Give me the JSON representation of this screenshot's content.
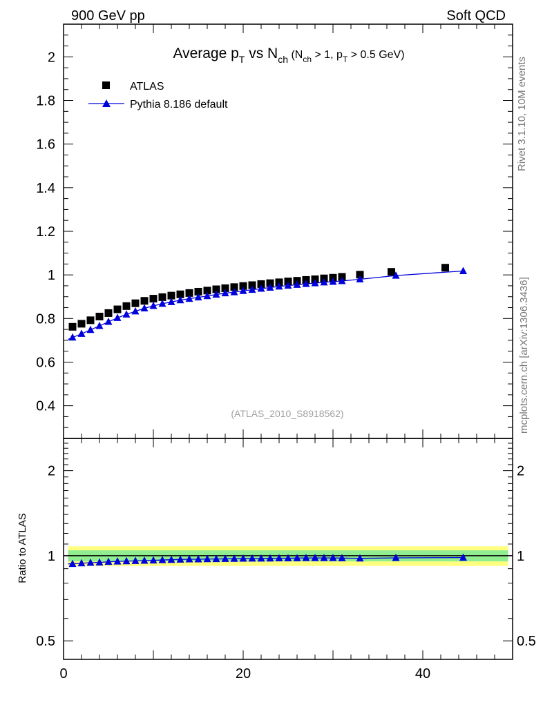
{
  "header": {
    "left": "900 GeV pp",
    "right": "Soft QCD"
  },
  "side": {
    "rivet": "Rivet 3.1.10,  10M events",
    "mcplots": "mcplots.cern.ch [arXiv:1306.3436]"
  },
  "watermark": "(ATLAS_2010_S8918562)",
  "title": {
    "main": "Average p",
    "main_sub": "T",
    "vs": " vs N",
    "vs_sub": "ch",
    "cut1": " (N",
    "cut1_sub": "ch",
    "cut2": " > 1, p",
    "cut2_sub": "T",
    "cut3": " > 0.5 GeV)"
  },
  "legend": {
    "data_label": "ATLAS",
    "mc_label": "Pythia 8.186 default"
  },
  "colors": {
    "data": "#000000",
    "mc": "#0000dd",
    "band_outer": "#ffff80",
    "band_inner": "#90ee90"
  },
  "chart_data": [
    {
      "type": "scatter",
      "panel": "main",
      "xlim": [
        0,
        50
      ],
      "ylim": [
        0.25,
        2.15
      ],
      "yticks": [
        0.4,
        0.6,
        0.8,
        1,
        1.2,
        1.4,
        1.6,
        1.8,
        2
      ],
      "ytick_labels": [
        "0.4",
        "0.6",
        "0.8",
        "1",
        "1.2",
        "1.4",
        "1.6",
        "1.8",
        "2"
      ],
      "series": [
        {
          "name": "ATLAS",
          "marker": "square",
          "x": [
            1,
            2,
            3,
            4,
            5,
            6,
            7,
            8,
            9,
            10,
            11,
            12,
            13,
            14,
            15,
            16,
            17,
            18,
            19,
            20,
            21,
            22,
            23,
            24,
            25,
            26,
            27,
            28,
            29,
            30,
            31,
            33,
            36.5,
            42.5
          ],
          "y": [
            0.762,
            0.776,
            0.792,
            0.809,
            0.825,
            0.842,
            0.857,
            0.87,
            0.881,
            0.891,
            0.898,
            0.905,
            0.911,
            0.917,
            0.923,
            0.928,
            0.934,
            0.939,
            0.944,
            0.949,
            0.953,
            0.958,
            0.962,
            0.966,
            0.97,
            0.973,
            0.977,
            0.98,
            0.984,
            0.987,
            0.991,
            1.001,
            1.014,
            1.033
          ]
        },
        {
          "name": "Pythia 8.186 default",
          "marker": "triangle",
          "x": [
            1,
            2,
            3,
            4,
            5,
            6,
            7,
            8,
            9,
            10,
            11,
            12,
            13,
            14,
            15,
            16,
            17,
            18,
            19,
            20,
            21,
            22,
            23,
            24,
            25,
            26,
            27,
            28,
            29,
            30,
            31,
            33,
            37,
            44.5
          ],
          "y": [
            0.713,
            0.73,
            0.748,
            0.766,
            0.785,
            0.803,
            0.819,
            0.833,
            0.847,
            0.858,
            0.868,
            0.876,
            0.884,
            0.891,
            0.897,
            0.903,
            0.91,
            0.916,
            0.921,
            0.927,
            0.932,
            0.937,
            0.942,
            0.947,
            0.951,
            0.955,
            0.959,
            0.962,
            0.966,
            0.969,
            0.972,
            0.98,
            0.997,
            1.018
          ]
        }
      ]
    },
    {
      "type": "scatter",
      "panel": "ratio",
      "ylabel": "Ratio to ATLAS",
      "xlabel": "",
      "xlim": [
        0,
        50
      ],
      "ylim": [
        0.43,
        2.6
      ],
      "yscale": "log",
      "yticks": [
        0.5,
        1,
        2
      ],
      "ytick_labels": [
        "0.5",
        "1",
        "2"
      ],
      "xticks": [
        0,
        20,
        40
      ],
      "xtick_labels": [
        "0",
        "20",
        "40"
      ],
      "band": {
        "x0": 0.5,
        "x1": 49.5,
        "outer": 0.08,
        "inner": 0.045
      },
      "series": [
        {
          "name": "Pythia 8.186 default / ATLAS",
          "marker": "triangle",
          "x": [
            1,
            2,
            3,
            4,
            5,
            6,
            7,
            8,
            9,
            10,
            11,
            12,
            13,
            14,
            15,
            16,
            17,
            18,
            19,
            20,
            21,
            22,
            23,
            24,
            25,
            26,
            27,
            28,
            29,
            30,
            31,
            33,
            37,
            44.5
          ],
          "y": [
            0.936,
            0.941,
            0.945,
            0.947,
            0.952,
            0.955,
            0.957,
            0.959,
            0.961,
            0.963,
            0.966,
            0.968,
            0.97,
            0.972,
            0.972,
            0.973,
            0.974,
            0.975,
            0.976,
            0.977,
            0.978,
            0.978,
            0.979,
            0.98,
            0.98,
            0.981,
            0.982,
            0.982,
            0.982,
            0.982,
            0.981,
            0.979,
            0.983,
            0.985
          ]
        }
      ]
    }
  ]
}
